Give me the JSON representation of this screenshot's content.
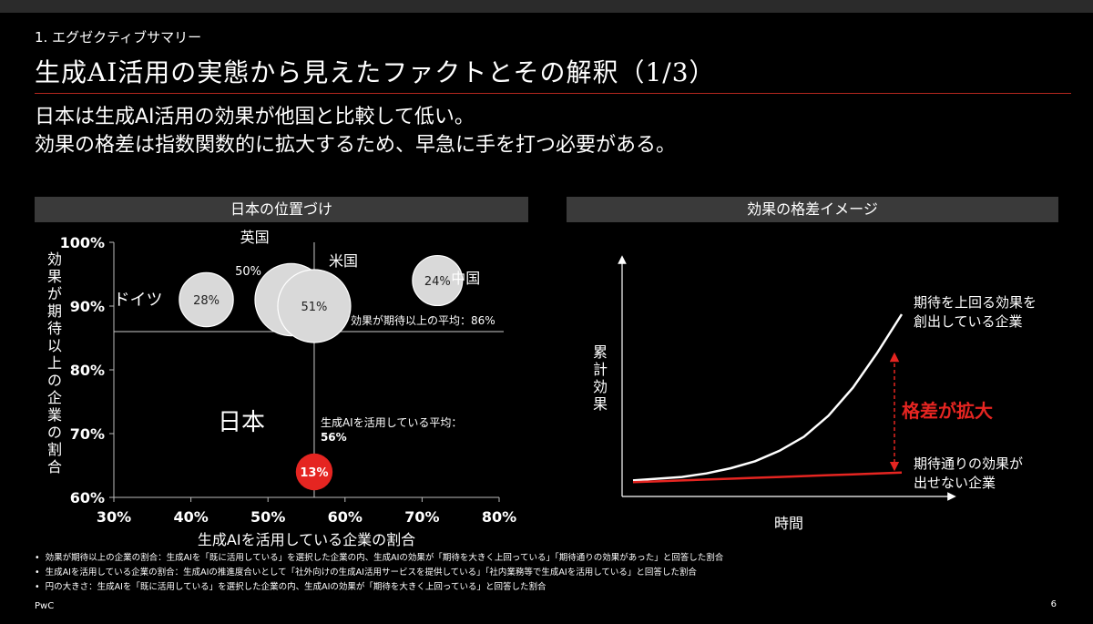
{
  "section": "1. エグゼクティブサマリー",
  "title": "生成AI活用の実態から見えたファクトとその解釈（1/3）",
  "subtitle_lines": [
    "日本は生成AI活用の効果が他国と比較して低い。",
    "効果の格差は指数関数的に拡大するため、早急に手を打つ必要がある。"
  ],
  "left_panel_title": "日本の位置づけ",
  "right_panel_title": "効果の格差イメージ",
  "chart_data": [
    {
      "type": "scatter",
      "xlabel": "生成AIを活用している企業の割合",
      "ylabel": "効果が期待以上の企業の割合",
      "xlim": [
        30,
        80
      ],
      "ylim": [
        60,
        100
      ],
      "x_ticks": [
        "30%",
        "40%",
        "50%",
        "60%",
        "70%",
        "80%"
      ],
      "y_ticks": [
        "60%",
        "70%",
        "80%",
        "90%",
        "100%"
      ],
      "points": [
        {
          "country": "ドイツ",
          "x": 42,
          "y": 91,
          "bubble": 28,
          "bubble_label": "28%"
        },
        {
          "country": "英国",
          "x": 53,
          "y": 91,
          "bubble": 50,
          "bubble_label": "50%"
        },
        {
          "country": "米国",
          "x": 56,
          "y": 90,
          "bubble": 51,
          "bubble_label": "51%"
        },
        {
          "country": "中国",
          "x": 72,
          "y": 94,
          "bubble": 24,
          "bubble_label": "24%"
        },
        {
          "country": "日本",
          "x": 56,
          "y": 64,
          "bubble": 13,
          "bubble_label": "13%"
        }
      ],
      "ref_lines": {
        "y": 86,
        "y_label": "効果が期待以上の平均：86%",
        "x": 56,
        "x_label_1": "生成AIを活用している平均：",
        "x_label_2": "56%"
      },
      "colors": {
        "bubble": "#d9d9d9",
        "japan": "#e52521"
      }
    },
    {
      "type": "line",
      "title": "",
      "xlabel": "時間",
      "ylabel": "累計効果",
      "series": [
        {
          "name": "期待を上回る効果を創出している企業",
          "label_lines": [
            "期待を上回る効果を",
            "創出している企業"
          ],
          "values": [
            0.05,
            0.06,
            0.07,
            0.09,
            0.12,
            0.16,
            0.22,
            0.3,
            0.42,
            0.58,
            0.78,
            1.0
          ]
        },
        {
          "name": "期待通りの効果が出せない企業",
          "label_lines": [
            "期待通りの効果が",
            "出せない企業"
          ],
          "values": [
            0.04,
            0.045,
            0.05,
            0.055,
            0.06,
            0.065,
            0.07,
            0.075,
            0.08,
            0.085,
            0.09,
            0.095
          ]
        }
      ],
      "annotation": "格差が拡大",
      "colors": {
        "top": "#ffffff",
        "bottom": "#e52521",
        "annotation": "#e52521"
      }
    }
  ],
  "notes": [
    "効果が期待以上の企業の割合：生成AIを「既に活用している」を選択した企業の内、生成AIの効果が「期待を大きく上回っている」「期待通りの効果があった」と回答した割合",
    "生成AIを活用している企業の割合：生成AIの推進度合いとして「社外向けの生成AI活用サービスを提供している」「社内業務等で生成AIを活用している」と回答した割合",
    "円の大きさ：生成AIを「既に活用している」を選択した企業の内、生成AIの効果が「期待を大きく上回っている」と回答した割合"
  ],
  "footer": "PwC",
  "page": "6"
}
